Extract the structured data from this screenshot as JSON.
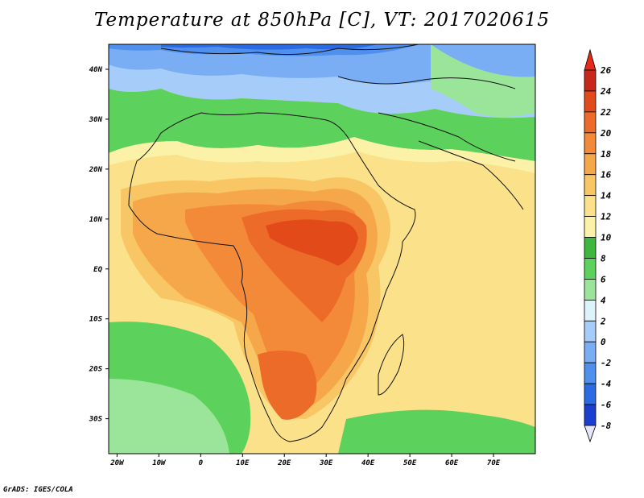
{
  "title": "Temperature at 850hPa [C], VT: 2017020615",
  "credit": "GrADS: IGES/COLA",
  "map": {
    "lon_range": [
      -22,
      80
    ],
    "lat_range": [
      -37,
      45
    ],
    "x_ticks": [
      "20W",
      "10W",
      "0",
      "10E",
      "20E",
      "30E",
      "40E",
      "50E",
      "60E",
      "70E"
    ],
    "y_ticks": [
      "40N",
      "30N",
      "20N",
      "10N",
      "EQ",
      "10S",
      "20S",
      "30S"
    ]
  },
  "colorbar": {
    "levels": [
      "26",
      "24",
      "22",
      "20",
      "18",
      "16",
      "14",
      "12",
      "10",
      "8",
      "6",
      "4",
      "2",
      "0",
      "-2",
      "-4",
      "-6",
      "-8"
    ],
    "colors": [
      "#1a1a8c",
      "#1a3fd0",
      "#2a6be3",
      "#4f8fee",
      "#79aef5",
      "#a6cdfa",
      "#dcf3fa",
      "#9be59a",
      "#5cd15c",
      "#3eb73e",
      "#fbf2a8",
      "#fbe28a",
      "#f9c665",
      "#f6a74a",
      "#f28a3a",
      "#ec6b28",
      "#e24a1a",
      "#c8281a",
      "#e52a1a"
    ]
  }
}
